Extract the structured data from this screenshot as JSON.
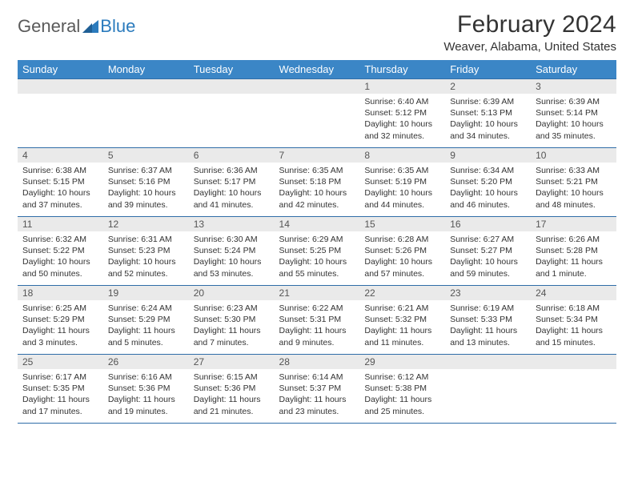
{
  "logo": {
    "word1": "General",
    "word2": "Blue"
  },
  "title": "February 2024",
  "location": "Weaver, Alabama, United States",
  "headers": [
    "Sunday",
    "Monday",
    "Tuesday",
    "Wednesday",
    "Thursday",
    "Friday",
    "Saturday"
  ],
  "colors": {
    "header_bg": "#3b86c6",
    "row_border": "#2f6da8",
    "daynum_bg": "#eaeaea",
    "page_bg": "#ffffff"
  },
  "weeks": [
    [
      null,
      null,
      null,
      null,
      {
        "num": "1",
        "sunrise": "Sunrise: 6:40 AM",
        "sunset": "Sunset: 5:12 PM",
        "daylight": "Daylight: 10 hours and 32 minutes."
      },
      {
        "num": "2",
        "sunrise": "Sunrise: 6:39 AM",
        "sunset": "Sunset: 5:13 PM",
        "daylight": "Daylight: 10 hours and 34 minutes."
      },
      {
        "num": "3",
        "sunrise": "Sunrise: 6:39 AM",
        "sunset": "Sunset: 5:14 PM",
        "daylight": "Daylight: 10 hours and 35 minutes."
      }
    ],
    [
      {
        "num": "4",
        "sunrise": "Sunrise: 6:38 AM",
        "sunset": "Sunset: 5:15 PM",
        "daylight": "Daylight: 10 hours and 37 minutes."
      },
      {
        "num": "5",
        "sunrise": "Sunrise: 6:37 AM",
        "sunset": "Sunset: 5:16 PM",
        "daylight": "Daylight: 10 hours and 39 minutes."
      },
      {
        "num": "6",
        "sunrise": "Sunrise: 6:36 AM",
        "sunset": "Sunset: 5:17 PM",
        "daylight": "Daylight: 10 hours and 41 minutes."
      },
      {
        "num": "7",
        "sunrise": "Sunrise: 6:35 AM",
        "sunset": "Sunset: 5:18 PM",
        "daylight": "Daylight: 10 hours and 42 minutes."
      },
      {
        "num": "8",
        "sunrise": "Sunrise: 6:35 AM",
        "sunset": "Sunset: 5:19 PM",
        "daylight": "Daylight: 10 hours and 44 minutes."
      },
      {
        "num": "9",
        "sunrise": "Sunrise: 6:34 AM",
        "sunset": "Sunset: 5:20 PM",
        "daylight": "Daylight: 10 hours and 46 minutes."
      },
      {
        "num": "10",
        "sunrise": "Sunrise: 6:33 AM",
        "sunset": "Sunset: 5:21 PM",
        "daylight": "Daylight: 10 hours and 48 minutes."
      }
    ],
    [
      {
        "num": "11",
        "sunrise": "Sunrise: 6:32 AM",
        "sunset": "Sunset: 5:22 PM",
        "daylight": "Daylight: 10 hours and 50 minutes."
      },
      {
        "num": "12",
        "sunrise": "Sunrise: 6:31 AM",
        "sunset": "Sunset: 5:23 PM",
        "daylight": "Daylight: 10 hours and 52 minutes."
      },
      {
        "num": "13",
        "sunrise": "Sunrise: 6:30 AM",
        "sunset": "Sunset: 5:24 PM",
        "daylight": "Daylight: 10 hours and 53 minutes."
      },
      {
        "num": "14",
        "sunrise": "Sunrise: 6:29 AM",
        "sunset": "Sunset: 5:25 PM",
        "daylight": "Daylight: 10 hours and 55 minutes."
      },
      {
        "num": "15",
        "sunrise": "Sunrise: 6:28 AM",
        "sunset": "Sunset: 5:26 PM",
        "daylight": "Daylight: 10 hours and 57 minutes."
      },
      {
        "num": "16",
        "sunrise": "Sunrise: 6:27 AM",
        "sunset": "Sunset: 5:27 PM",
        "daylight": "Daylight: 10 hours and 59 minutes."
      },
      {
        "num": "17",
        "sunrise": "Sunrise: 6:26 AM",
        "sunset": "Sunset: 5:28 PM",
        "daylight": "Daylight: 11 hours and 1 minute."
      }
    ],
    [
      {
        "num": "18",
        "sunrise": "Sunrise: 6:25 AM",
        "sunset": "Sunset: 5:29 PM",
        "daylight": "Daylight: 11 hours and 3 minutes."
      },
      {
        "num": "19",
        "sunrise": "Sunrise: 6:24 AM",
        "sunset": "Sunset: 5:29 PM",
        "daylight": "Daylight: 11 hours and 5 minutes."
      },
      {
        "num": "20",
        "sunrise": "Sunrise: 6:23 AM",
        "sunset": "Sunset: 5:30 PM",
        "daylight": "Daylight: 11 hours and 7 minutes."
      },
      {
        "num": "21",
        "sunrise": "Sunrise: 6:22 AM",
        "sunset": "Sunset: 5:31 PM",
        "daylight": "Daylight: 11 hours and 9 minutes."
      },
      {
        "num": "22",
        "sunrise": "Sunrise: 6:21 AM",
        "sunset": "Sunset: 5:32 PM",
        "daylight": "Daylight: 11 hours and 11 minutes."
      },
      {
        "num": "23",
        "sunrise": "Sunrise: 6:19 AM",
        "sunset": "Sunset: 5:33 PM",
        "daylight": "Daylight: 11 hours and 13 minutes."
      },
      {
        "num": "24",
        "sunrise": "Sunrise: 6:18 AM",
        "sunset": "Sunset: 5:34 PM",
        "daylight": "Daylight: 11 hours and 15 minutes."
      }
    ],
    [
      {
        "num": "25",
        "sunrise": "Sunrise: 6:17 AM",
        "sunset": "Sunset: 5:35 PM",
        "daylight": "Daylight: 11 hours and 17 minutes."
      },
      {
        "num": "26",
        "sunrise": "Sunrise: 6:16 AM",
        "sunset": "Sunset: 5:36 PM",
        "daylight": "Daylight: 11 hours and 19 minutes."
      },
      {
        "num": "27",
        "sunrise": "Sunrise: 6:15 AM",
        "sunset": "Sunset: 5:36 PM",
        "daylight": "Daylight: 11 hours and 21 minutes."
      },
      {
        "num": "28",
        "sunrise": "Sunrise: 6:14 AM",
        "sunset": "Sunset: 5:37 PM",
        "daylight": "Daylight: 11 hours and 23 minutes."
      },
      {
        "num": "29",
        "sunrise": "Sunrise: 6:12 AM",
        "sunset": "Sunset: 5:38 PM",
        "daylight": "Daylight: 11 hours and 25 minutes."
      },
      null,
      null
    ]
  ]
}
